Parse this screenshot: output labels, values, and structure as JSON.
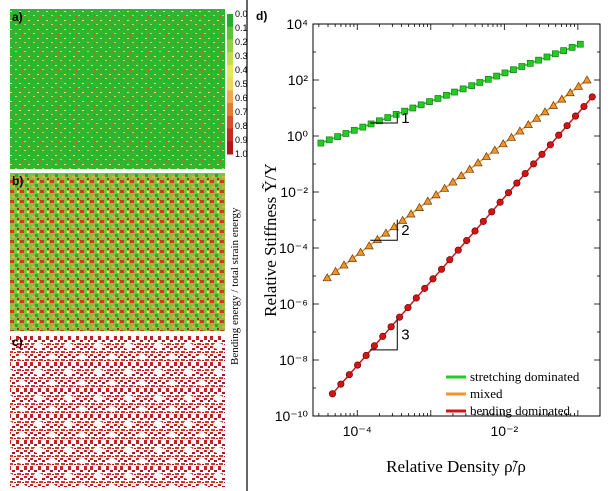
{
  "panels": {
    "a_label": "a)",
    "b_label": "b)",
    "c_label": "c)",
    "d_label": "d)"
  },
  "colorbar": {
    "title": "Bending energy / total strain energy",
    "ticks": [
      "0.0",
      "0.1",
      "0.2",
      "0.3",
      "0.4",
      "0.5",
      "0.6",
      "0.7",
      "0.8",
      "0.9",
      "1.0"
    ],
    "colors": [
      "#1fae2e",
      "#5cc23b",
      "#8fd13e",
      "#bedf45",
      "#e6ea55",
      "#f4d75a",
      "#f1a94a",
      "#e47b3a",
      "#d4502d",
      "#c32a22",
      "#b3141b"
    ]
  },
  "chart_data": {
    "type": "scatter",
    "xlabel": "Relative Density ρ̃/ρ",
    "ylabel": "Relative Stiffness Ỹ/Y",
    "xscale": "log",
    "yscale": "log",
    "xlim": [
      2.5e-05,
      0.2
    ],
    "ylim": [
      1e-10,
      10000.0
    ],
    "xticks": [
      {
        "value": 0.0001,
        "label": "10⁻⁴"
      },
      {
        "value": 0.01,
        "label": "10⁻²"
      }
    ],
    "yticks": [
      {
        "value": 10000.0,
        "label": "10⁴"
      },
      {
        "value": 100.0,
        "label": "10²"
      },
      {
        "value": 1.0,
        "label": "10⁰"
      },
      {
        "value": 0.01,
        "label": "10⁻²"
      },
      {
        "value": 0.0001,
        "label": "10⁻⁴"
      },
      {
        "value": 1e-06,
        "label": "10⁻⁶"
      },
      {
        "value": 1e-08,
        "label": "10⁻⁸"
      },
      {
        "value": 1e-10,
        "label": "10⁻¹⁰"
      }
    ],
    "legend_position": "bottom-right",
    "series": [
      {
        "name": "stretching dominated",
        "slope": 1,
        "color": "#22cc22",
        "marker": "square",
        "x": [
          3.2e-05,
          4.16e-05,
          5.4e-05,
          7e-05,
          9.1e-05,
          0.000119,
          0.000154,
          0.0002,
          0.00026,
          0.000338,
          0.00044,
          0.00057,
          0.00074,
          0.00096,
          0.00125,
          0.00163,
          0.0021,
          0.00275,
          0.0036,
          0.00465,
          0.00605,
          0.00785,
          0.0102,
          0.0133,
          0.0173,
          0.0225,
          0.0292,
          0.038,
          0.0494,
          0.064,
          0.0835,
          0.108
        ],
        "y": [
          0.56,
          0.73,
          0.95,
          1.23,
          1.6,
          2.08,
          2.7,
          3.5,
          4.56,
          5.93,
          7.7,
          10.0,
          13.0,
          16.9,
          21.9,
          28.5,
          37.1,
          48.2,
          62.7,
          81.5,
          106,
          138,
          179,
          233,
          303,
          393,
          511,
          665,
          864,
          1120,
          1460,
          1900
        ]
      },
      {
        "name": "mixed",
        "slope": 2,
        "color": "#f0952a",
        "marker": "triangle",
        "x": [
          3.9e-05,
          5.07e-05,
          6.6e-05,
          8.6e-05,
          0.000111,
          0.000145,
          0.000188,
          0.000245,
          0.000318,
          0.000414,
          0.000538,
          0.0007,
          0.00091,
          0.00118,
          0.00154,
          0.002,
          0.0026,
          0.00338,
          0.00439,
          0.00571,
          0.00742,
          0.00965,
          0.0125,
          0.0163,
          0.0212,
          0.0276,
          0.0358,
          0.0466,
          0.0606,
          0.0788,
          0.102,
          0.133
        ],
        "y": [
          8.6e-06,
          1.45e-05,
          2.46e-05,
          4.16e-05,
          7.03e-05,
          0.000119,
          0.000201,
          0.00034,
          0.000574,
          0.00097,
          0.00164,
          0.00277,
          0.00468,
          0.00791,
          0.0134,
          0.0226,
          0.0382,
          0.0645,
          0.109,
          0.184,
          0.312,
          0.527,
          0.89,
          1.5,
          2.54,
          4.3,
          7.26,
          12.3,
          20.7,
          35.0,
          59.2,
          100
        ]
      },
      {
        "name": "bending dominated",
        "slope": 3,
        "color": "#d41414",
        "marker": "circle",
        "x": [
          4.6e-05,
          5.98e-05,
          7.8e-05,
          0.000101,
          0.000132,
          0.000171,
          0.000222,
          0.000289,
          0.000376,
          0.000489,
          0.000635,
          0.000826,
          0.00107,
          0.0014,
          0.00181,
          0.00236,
          0.00307,
          0.00399,
          0.00518,
          0.00674,
          0.00876,
          0.0114,
          0.0148,
          0.0192,
          0.025,
          0.0325,
          0.0423,
          0.0549,
          0.0714,
          0.0929,
          0.121,
          0.157
        ],
        "y": [
          6.2e-10,
          1.37e-09,
          3e-09,
          6.6e-09,
          1.45e-08,
          3.2e-08,
          7e-08,
          1.54e-07,
          3.39e-07,
          7.45e-07,
          1.64e-06,
          3.6e-06,
          7.91e-06,
          1.74e-05,
          3.82e-05,
          8.4e-05,
          0.000185,
          0.000406,
          0.000892,
          0.00196,
          0.00431,
          0.00947,
          0.0208,
          0.0457,
          0.101,
          0.221,
          0.485,
          1.07,
          2.34,
          5.15,
          11.3,
          24.9
        ]
      }
    ],
    "annotations": [
      {
        "label": "1",
        "slope": 1,
        "x0": 0.00015,
        "x1": 0.00035,
        "y0": 2.9
      },
      {
        "label": "2",
        "slope": 2,
        "x0": 0.00015,
        "x1": 0.00035,
        "y0": 0.00019
      },
      {
        "label": "3",
        "slope": 3,
        "x0": 0.00015,
        "x1": 0.00035,
        "y0": 2.3e-08
      }
    ]
  }
}
